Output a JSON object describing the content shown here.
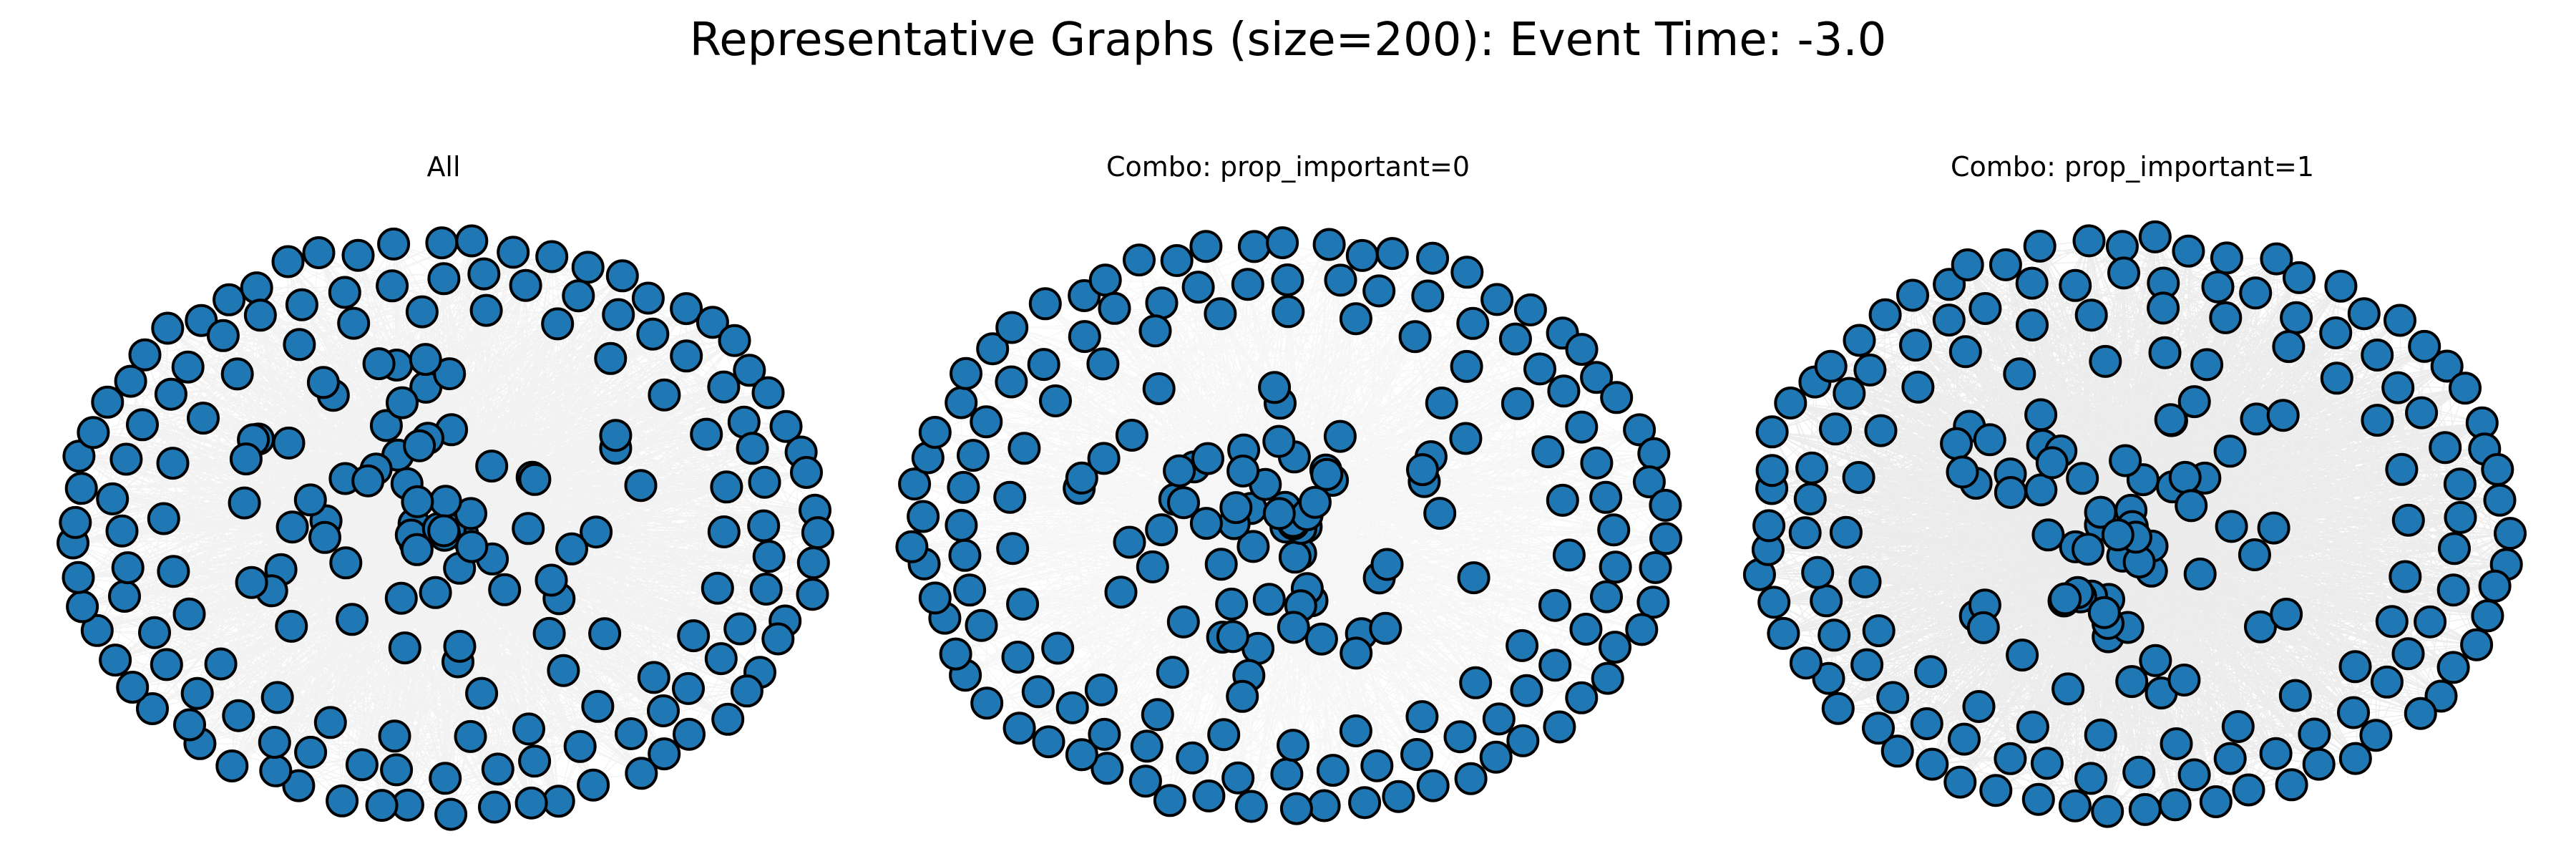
{
  "figure": {
    "title": "Representative Graphs (size=200): Event Time: -3.0"
  },
  "panels": [
    {
      "title": "All",
      "density": "medium"
    },
    {
      "title": "Combo: prop_important=0",
      "density": "light"
    },
    {
      "title": "Combo: prop_important=1",
      "density": "heavy"
    }
  ],
  "colors": {
    "node_fill": "#1f77b4",
    "node_stroke": "#000000",
    "edge": "#000000",
    "background": "#ffffff"
  }
}
